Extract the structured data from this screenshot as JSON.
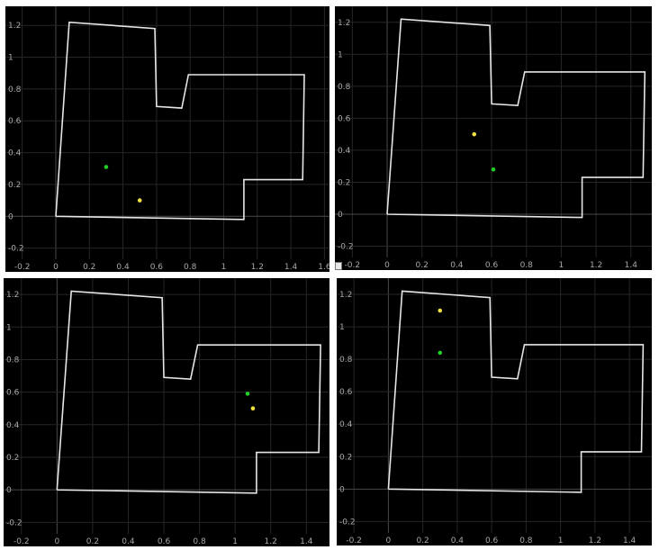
{
  "colors": {
    "background": "#000000",
    "polygon": "#e6e6e6",
    "marker_a": "#1fd126",
    "marker_b": "#f0e040"
  },
  "chart_data": [
    {
      "type": "scatter",
      "xlabel": "",
      "ylabel": "",
      "xlim": [
        -0.3,
        1.63
      ],
      "ylim": [
        -0.27,
        1.32
      ],
      "x_ticks": [
        "-0.2",
        "0",
        "0.2",
        "0.4",
        "0.6",
        "0.8",
        "1",
        "1.2",
        "1.4",
        "1.6"
      ],
      "y_ticks": [
        "-0.2",
        "0",
        "0.2",
        "0.4",
        "0.6",
        "0.8",
        "1",
        "1.2"
      ],
      "grid": true,
      "polygon": [
        [
          0,
          0
        ],
        [
          0.08,
          1.22
        ],
        [
          0.59,
          1.18
        ],
        [
          0.6,
          0.69
        ],
        [
          0.75,
          0.68
        ],
        [
          0.79,
          0.89
        ],
        [
          1.48,
          0.89
        ],
        [
          1.47,
          0.23
        ],
        [
          1.12,
          0.23
        ],
        [
          1.12,
          -0.02
        ],
        [
          0,
          0
        ]
      ],
      "points": [
        {
          "marker": "a",
          "x": 0.3,
          "y": 0.31
        },
        {
          "marker": "b",
          "x": 0.5,
          "y": 0.1
        }
      ]
    },
    {
      "type": "scatter",
      "xlabel": "",
      "ylabel": "",
      "xlim": [
        -0.3,
        1.52
      ],
      "ylim": [
        -0.27,
        1.3
      ],
      "x_ticks": [
        "-0.2",
        "0",
        "0.2",
        "0.4",
        "0.6",
        "0.8",
        "1",
        "1.2",
        "1.4"
      ],
      "y_ticks": [
        "-0.2",
        "0",
        "0.2",
        "0.4",
        "0.6",
        "0.8",
        "1",
        "1.2"
      ],
      "grid": true,
      "polygon": [
        [
          0,
          0
        ],
        [
          0.08,
          1.22
        ],
        [
          0.59,
          1.18
        ],
        [
          0.6,
          0.69
        ],
        [
          0.75,
          0.68
        ],
        [
          0.79,
          0.89
        ],
        [
          1.48,
          0.89
        ],
        [
          1.47,
          0.23
        ],
        [
          1.12,
          0.23
        ],
        [
          1.12,
          -0.02
        ],
        [
          0,
          0
        ]
      ],
      "points": [
        {
          "marker": "b",
          "x": 0.5,
          "y": 0.5
        },
        {
          "marker": "a",
          "x": 0.61,
          "y": 0.28
        }
      ]
    },
    {
      "type": "scatter",
      "xlabel": "",
      "ylabel": "",
      "xlim": [
        -0.3,
        1.53
      ],
      "ylim": [
        -0.27,
        1.3
      ],
      "x_ticks": [
        "-0.2",
        "0",
        "0.2",
        "0.4",
        "0.6",
        "0.8",
        "1",
        "1.2",
        "1.4"
      ],
      "y_ticks": [
        "-0.2",
        "0",
        "0.2",
        "0.4",
        "0.6",
        "0.8",
        "1",
        "1.2"
      ],
      "grid": true,
      "polygon": [
        [
          0,
          0
        ],
        [
          0.08,
          1.22
        ],
        [
          0.59,
          1.18
        ],
        [
          0.6,
          0.69
        ],
        [
          0.75,
          0.68
        ],
        [
          0.79,
          0.89
        ],
        [
          1.48,
          0.89
        ],
        [
          1.47,
          0.23
        ],
        [
          1.12,
          0.23
        ],
        [
          1.12,
          -0.02
        ],
        [
          0,
          0
        ]
      ],
      "points": [
        {
          "marker": "a",
          "x": 1.07,
          "y": 0.59
        },
        {
          "marker": "b",
          "x": 1.1,
          "y": 0.5
        }
      ]
    },
    {
      "type": "scatter",
      "xlabel": "",
      "ylabel": "",
      "xlim": [
        -0.3,
        1.53
      ],
      "ylim": [
        -0.27,
        1.3
      ],
      "x_ticks": [
        "-0.2",
        "0",
        "0.2",
        "0.4",
        "0.6",
        "0.8",
        "1",
        "1.2",
        "1.4"
      ],
      "y_ticks": [
        "-0.2",
        "0",
        "0.2",
        "0.4",
        "0.6",
        "0.8",
        "1",
        "1.2"
      ],
      "grid": true,
      "polygon": [
        [
          0,
          0
        ],
        [
          0.08,
          1.22
        ],
        [
          0.59,
          1.18
        ],
        [
          0.6,
          0.69
        ],
        [
          0.75,
          0.68
        ],
        [
          0.79,
          0.89
        ],
        [
          1.48,
          0.89
        ],
        [
          1.47,
          0.23
        ],
        [
          1.12,
          0.23
        ],
        [
          1.12,
          -0.02
        ],
        [
          0,
          0
        ]
      ],
      "points": [
        {
          "marker": "b",
          "x": 0.3,
          "y": 1.1
        },
        {
          "marker": "a",
          "x": 0.3,
          "y": 0.84
        }
      ]
    }
  ]
}
